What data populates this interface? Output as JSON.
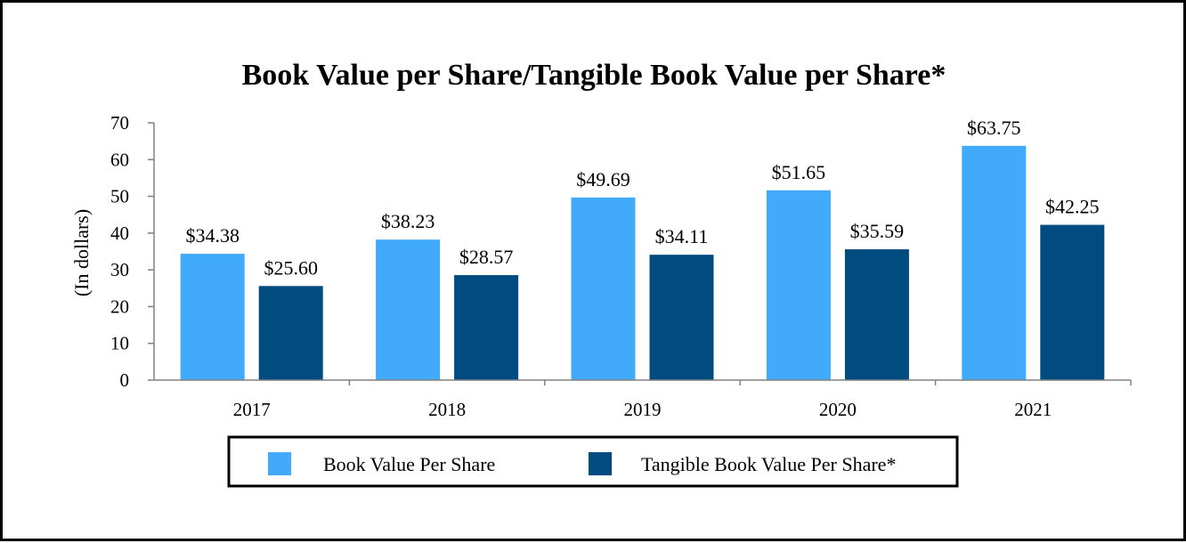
{
  "chart_data": {
    "type": "bar",
    "title": "Book Value per Share/Tangible Book Value per Share*",
    "xlabel": "",
    "ylabel": "(In dollars)",
    "ylim": [
      0,
      70
    ],
    "yticks": [
      0,
      10,
      20,
      30,
      40,
      50,
      60,
      70
    ],
    "categories": [
      "2017",
      "2018",
      "2019",
      "2020",
      "2021"
    ],
    "series": [
      {
        "name": "Book Value Per Share",
        "color": "#41AAFA",
        "values": [
          34.38,
          38.23,
          49.69,
          51.65,
          63.75
        ],
        "labels": [
          "$34.38",
          "$38.23",
          "$49.69",
          "$51.65",
          "$63.75"
        ]
      },
      {
        "name": "Tangible Book Value Per Share*",
        "color": "#004C81",
        "values": [
          25.6,
          28.57,
          34.11,
          35.59,
          42.25
        ],
        "labels": [
          "$25.60",
          "$28.57",
          "$34.11",
          "$35.59",
          "$42.25"
        ]
      }
    ],
    "grid": false,
    "legend_position": "bottom-center"
  }
}
